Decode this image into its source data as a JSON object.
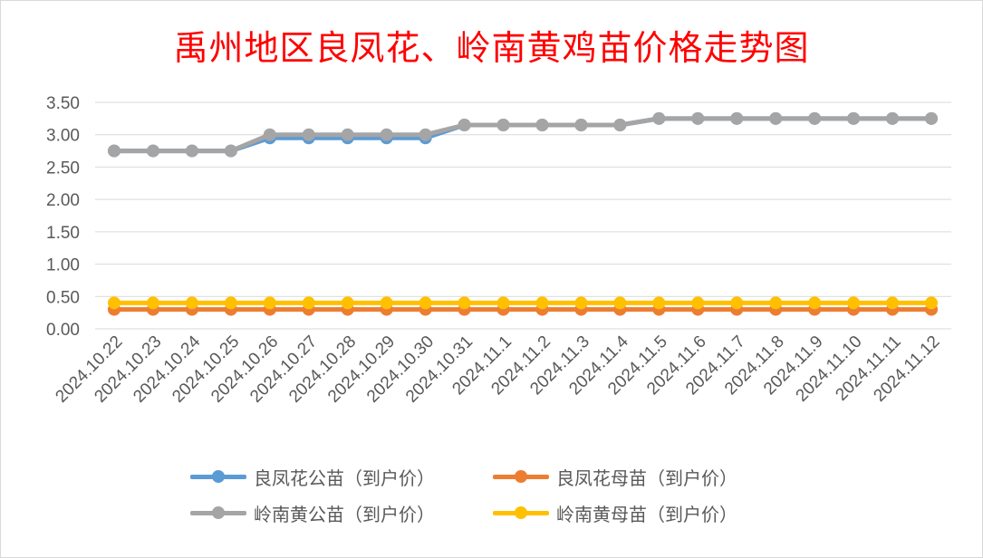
{
  "chart_data": {
    "type": "line",
    "title": "禹州地区良凤花、岭南黄鸡苗价格走势图",
    "categories": [
      "2024.10.22",
      "2024.10.23",
      "2024.10.24",
      "2024.10.25",
      "2024.10.26",
      "2024.10.27",
      "2024.10.28",
      "2024.10.29",
      "2024.10.30",
      "2024.10.31",
      "2024.11.1",
      "2024.11.2",
      "2024.11.3",
      "2024.11.4",
      "2024.11.5",
      "2024.11.6",
      "2024.11.7",
      "2024.11.8",
      "2024.11.9",
      "2024.11.10",
      "2024.11.11",
      "2024.11.12"
    ],
    "y_ticks": [
      "0.00",
      "0.50",
      "1.00",
      "1.50",
      "2.00",
      "2.50",
      "3.00",
      "3.50"
    ],
    "ylim": [
      0,
      3.5
    ],
    "grid": "horizontal",
    "legend_position": "bottom",
    "series": [
      {
        "name": "良凤花公苗（到户价）",
        "color": "#5b9bd5",
        "values": [
          2.75,
          2.75,
          2.75,
          2.75,
          2.95,
          2.95,
          2.95,
          2.95,
          2.95,
          3.15,
          3.15,
          3.15,
          3.15,
          3.15,
          3.25,
          3.25,
          3.25,
          3.25,
          3.25,
          3.25,
          3.25,
          3.25
        ]
      },
      {
        "name": "良凤花母苗（到户价）",
        "color": "#ed7d31",
        "values": [
          0.3,
          0.3,
          0.3,
          0.3,
          0.3,
          0.3,
          0.3,
          0.3,
          0.3,
          0.3,
          0.3,
          0.3,
          0.3,
          0.3,
          0.3,
          0.3,
          0.3,
          0.3,
          0.3,
          0.3,
          0.3,
          0.3
        ]
      },
      {
        "name": "岭南黄公苗（到户价）",
        "color": "#a5a5a5",
        "values": [
          2.75,
          2.75,
          2.75,
          2.75,
          3.0,
          3.0,
          3.0,
          3.0,
          3.0,
          3.15,
          3.15,
          3.15,
          3.15,
          3.15,
          3.25,
          3.25,
          3.25,
          3.25,
          3.25,
          3.25,
          3.25,
          3.25
        ]
      },
      {
        "name": "岭南黄母苗（到户价）",
        "color": "#ffc000",
        "values": [
          0.4,
          0.4,
          0.4,
          0.4,
          0.4,
          0.4,
          0.4,
          0.4,
          0.4,
          0.4,
          0.4,
          0.4,
          0.4,
          0.4,
          0.4,
          0.4,
          0.4,
          0.4,
          0.4,
          0.4,
          0.4,
          0.4
        ]
      }
    ]
  }
}
